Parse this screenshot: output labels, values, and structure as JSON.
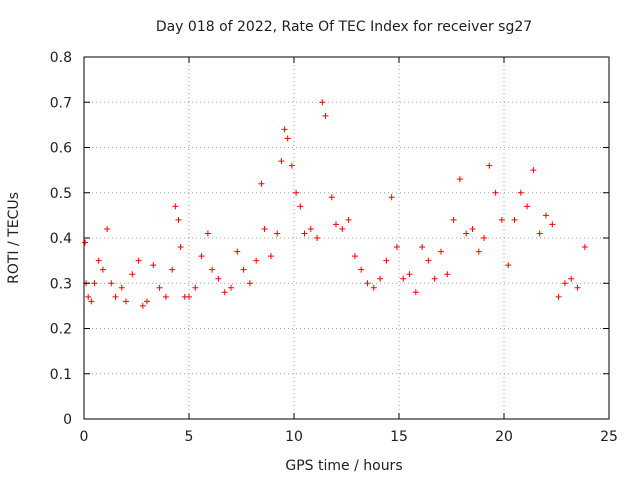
{
  "chart_data": {
    "type": "scatter",
    "title": "Day 018 of 2022, Rate Of TEC Index for receiver sg27",
    "xlabel": "GPS time / hours",
    "ylabel": "ROTI / TECUs",
    "xlim": [
      0,
      25
    ],
    "ylim": [
      0,
      0.8
    ],
    "x_ticks": [
      0,
      5,
      10,
      15,
      20,
      25
    ],
    "y_ticks": [
      0,
      0.1,
      0.2,
      0.3,
      0.4,
      0.5,
      0.6,
      0.7,
      0.8
    ],
    "x_tick_labels": [
      "0",
      "5",
      "10",
      "15",
      "20",
      "25"
    ],
    "y_tick_labels": [
      "0",
      "0.1",
      "0.2",
      "0.3",
      "0.4",
      "0.5",
      "0.6",
      "0.7",
      "0.8"
    ],
    "grid": true,
    "legend": "none",
    "marker": "plus",
    "color": "#ff0000",
    "series": [
      {
        "x": [
          0.05,
          0.1,
          0.2,
          0.35,
          0.5,
          0.7,
          0.9,
          1.1,
          1.3,
          1.5,
          1.8,
          2.0,
          2.3,
          2.6,
          2.8,
          3.0,
          3.3,
          3.6,
          3.9,
          4.2,
          4.35,
          4.5,
          4.6,
          4.8,
          5.0,
          5.3,
          5.6,
          5.9,
          6.1,
          6.4,
          6.7,
          7.0,
          7.3,
          7.6,
          7.9,
          8.2,
          8.45,
          8.6,
          8.9,
          9.2,
          9.4,
          9.55,
          9.7,
          9.9,
          10.1,
          10.3,
          10.5,
          10.8,
          11.1,
          11.35,
          11.5,
          11.8,
          12.0,
          12.3,
          12.6,
          12.9,
          13.2,
          13.5,
          13.8,
          14.1,
          14.4,
          14.65,
          14.9,
          15.2,
          15.5,
          15.8,
          16.1,
          16.4,
          16.7,
          17.0,
          17.3,
          17.6,
          17.9,
          18.2,
          18.5,
          18.8,
          19.05,
          19.3,
          19.6,
          19.9,
          20.2,
          20.5,
          20.8,
          21.1,
          21.4,
          21.7,
          22.0,
          22.3,
          22.6,
          22.9,
          23.2,
          23.5,
          23.85
        ],
        "y": [
          0.39,
          0.3,
          0.27,
          0.26,
          0.3,
          0.35,
          0.33,
          0.42,
          0.3,
          0.27,
          0.29,
          0.26,
          0.32,
          0.35,
          0.25,
          0.26,
          0.34,
          0.29,
          0.27,
          0.33,
          0.47,
          0.44,
          0.38,
          0.27,
          0.27,
          0.29,
          0.36,
          0.41,
          0.33,
          0.31,
          0.28,
          0.29,
          0.37,
          0.33,
          0.3,
          0.35,
          0.52,
          0.42,
          0.36,
          0.41,
          0.57,
          0.64,
          0.62,
          0.56,
          0.5,
          0.47,
          0.41,
          0.42,
          0.4,
          0.7,
          0.67,
          0.49,
          0.43,
          0.42,
          0.44,
          0.36,
          0.33,
          0.3,
          0.29,
          0.31,
          0.35,
          0.49,
          0.38,
          0.31,
          0.32,
          0.28,
          0.38,
          0.35,
          0.31,
          0.37,
          0.32,
          0.44,
          0.53,
          0.41,
          0.42,
          0.37,
          0.4,
          0.56,
          0.5,
          0.44,
          0.34,
          0.44,
          0.5,
          0.47,
          0.55,
          0.41,
          0.45,
          0.43,
          0.27,
          0.3,
          0.31,
          0.29,
          0.38
        ]
      }
    ]
  }
}
